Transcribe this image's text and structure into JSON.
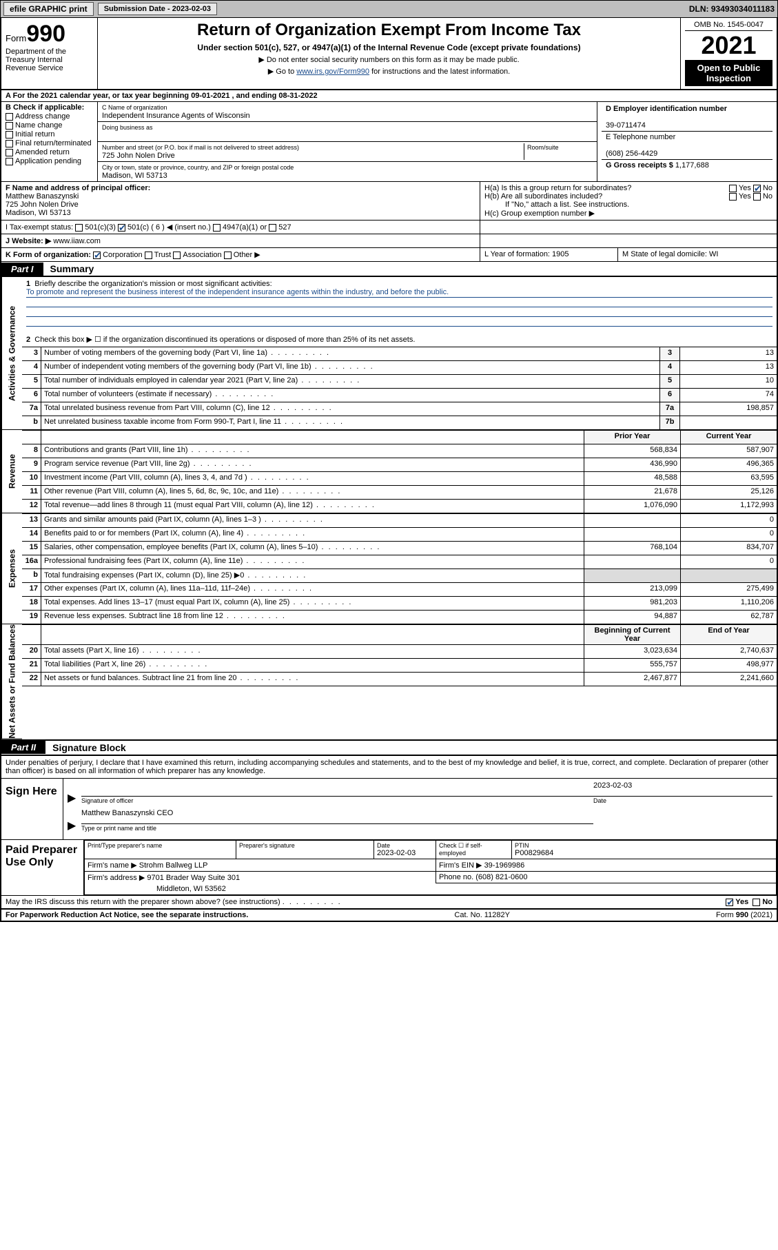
{
  "topbar": {
    "efile": "efile GRAPHIC print",
    "subdate_label": "Submission Date - 2023-02-03",
    "dln": "DLN: 93493034011183"
  },
  "header": {
    "form_prefix": "Form",
    "form_number": "990",
    "title": "Return of Organization Exempt From Income Tax",
    "subtitle": "Under section 501(c), 527, or 4947(a)(1) of the Internal Revenue Code (except private foundations)",
    "note1": "▶ Do not enter social security numbers on this form as it may be made public.",
    "note2_pre": "▶ Go to ",
    "note2_link": "www.irs.gov/Form990",
    "note2_post": " for instructions and the latest information.",
    "dept": "Department of the Treasury Internal Revenue Service",
    "omb": "OMB No. 1545-0047",
    "year": "2021",
    "open": "Open to Public Inspection"
  },
  "period": {
    "line": "A For the 2021 calendar year, or tax year beginning 09-01-2021    , and ending 08-31-2022"
  },
  "boxB": {
    "label": "B Check if applicable:",
    "items": [
      "Address change",
      "Name change",
      "Initial return",
      "Final return/terminated",
      "Amended return",
      "Application pending"
    ]
  },
  "boxC": {
    "lblname": "C Name of organization",
    "name": "Independent Insurance Agents of Wisconsin",
    "dba_lbl": "Doing business as",
    "addr_lbl": "Number and street (or P.O. box if mail is not delivered to street address)",
    "room_lbl": "Room/suite",
    "addr": "725 John Nolen Drive",
    "city_lbl": "City or town, state or province, country, and ZIP or foreign postal code",
    "city": "Madison, WI  53713"
  },
  "boxD": {
    "lbl": "D Employer identification number",
    "val": "39-0711474"
  },
  "boxE": {
    "lbl": "E Telephone number",
    "val": "(608) 256-4429"
  },
  "boxG": {
    "lbl": "G Gross receipts $",
    "val": "1,177,688"
  },
  "boxF": {
    "lbl": "F Name and address of principal officer:",
    "name": "Matthew Banaszynski",
    "addr1": "725 John Nolen Drive",
    "addr2": "Madison, WI  53713"
  },
  "boxH": {
    "a": "H(a)  Is this a group return for subordinates?",
    "b": "H(b)  Are all subordinates included?",
    "bnote": "If \"No,\" attach a list. See instructions.",
    "c": "H(c)  Group exemption number ▶",
    "yes": "Yes",
    "no": "No"
  },
  "rowI": {
    "lbl": "I   Tax-exempt status:",
    "o1": "501(c)(3)",
    "o2": "501(c) ( 6 ) ◀ (insert no.)",
    "o3": "4947(a)(1) or",
    "o4": "527"
  },
  "rowJ": {
    "lbl": "J   Website: ▶",
    "val": "www.iiaw.com"
  },
  "rowK": {
    "lbl": "K Form of organization:",
    "opts": [
      "Corporation",
      "Trust",
      "Association",
      "Other ▶"
    ],
    "L": "L Year of formation: 1905",
    "M": "M State of legal domicile: WI"
  },
  "part1": {
    "tag": "Part I",
    "title": "Summary"
  },
  "sections": {
    "gov": "Activities & Governance",
    "rev": "Revenue",
    "exp": "Expenses",
    "net": "Net Assets or Fund Balances"
  },
  "gov": {
    "l1a": "Briefly describe the organization's mission or most significant activities:",
    "l1b": "To promote and represent the business interest of the independent insurance agents within the industry, and before the public.",
    "l2": "Check this box ▶ ☐  if the organization discontinued its operations or disposed of more than 25% of its net assets.",
    "rows": [
      {
        "n": "3",
        "d": "Number of voting members of the governing body (Part VI, line 1a)",
        "k": "3",
        "v": "13"
      },
      {
        "n": "4",
        "d": "Number of independent voting members of the governing body (Part VI, line 1b)",
        "k": "4",
        "v": "13"
      },
      {
        "n": "5",
        "d": "Total number of individuals employed in calendar year 2021 (Part V, line 2a)",
        "k": "5",
        "v": "10"
      },
      {
        "n": "6",
        "d": "Total number of volunteers (estimate if necessary)",
        "k": "6",
        "v": "74"
      },
      {
        "n": "7a",
        "d": "Total unrelated business revenue from Part VIII, column (C), line 12",
        "k": "7a",
        "v": "198,857"
      },
      {
        "n": "b",
        "d": "Net unrelated business taxable income from Form 990-T, Part I, line 11",
        "k": "7b",
        "v": ""
      }
    ]
  },
  "cols": {
    "prior": "Prior Year",
    "current": "Current Year",
    "boy": "Beginning of Current Year",
    "eoy": "End of Year"
  },
  "rev": [
    {
      "n": "8",
      "d": "Contributions and grants (Part VIII, line 1h)",
      "p": "568,834",
      "c": "587,907"
    },
    {
      "n": "9",
      "d": "Program service revenue (Part VIII, line 2g)",
      "p": "436,990",
      "c": "496,365"
    },
    {
      "n": "10",
      "d": "Investment income (Part VIII, column (A), lines 3, 4, and 7d )",
      "p": "48,588",
      "c": "63,595"
    },
    {
      "n": "11",
      "d": "Other revenue (Part VIII, column (A), lines 5, 6d, 8c, 9c, 10c, and 11e)",
      "p": "21,678",
      "c": "25,126"
    },
    {
      "n": "12",
      "d": "Total revenue—add lines 8 through 11 (must equal Part VIII, column (A), line 12)",
      "p": "1,076,090",
      "c": "1,172,993"
    }
  ],
  "exp": [
    {
      "n": "13",
      "d": "Grants and similar amounts paid (Part IX, column (A), lines 1–3 )",
      "p": "",
      "c": "0"
    },
    {
      "n": "14",
      "d": "Benefits paid to or for members (Part IX, column (A), line 4)",
      "p": "",
      "c": "0"
    },
    {
      "n": "15",
      "d": "Salaries, other compensation, employee benefits (Part IX, column (A), lines 5–10)",
      "p": "768,104",
      "c": "834,707"
    },
    {
      "n": "16a",
      "d": "Professional fundraising fees (Part IX, column (A), line 11e)",
      "p": "",
      "c": "0"
    },
    {
      "n": "b",
      "d": "Total fundraising expenses (Part IX, column (D), line 25) ▶0",
      "p": "SHADE",
      "c": "SHADE"
    },
    {
      "n": "17",
      "d": "Other expenses (Part IX, column (A), lines 11a–11d, 11f–24e)",
      "p": "213,099",
      "c": "275,499"
    },
    {
      "n": "18",
      "d": "Total expenses. Add lines 13–17 (must equal Part IX, column (A), line 25)",
      "p": "981,203",
      "c": "1,110,206"
    },
    {
      "n": "19",
      "d": "Revenue less expenses. Subtract line 18 from line 12",
      "p": "94,887",
      "c": "62,787"
    }
  ],
  "net": [
    {
      "n": "20",
      "d": "Total assets (Part X, line 16)",
      "p": "3,023,634",
      "c": "2,740,637"
    },
    {
      "n": "21",
      "d": "Total liabilities (Part X, line 26)",
      "p": "555,757",
      "c": "498,977"
    },
    {
      "n": "22",
      "d": "Net assets or fund balances. Subtract line 21 from line 20",
      "p": "2,467,877",
      "c": "2,241,660"
    }
  ],
  "part2": {
    "tag": "Part II",
    "title": "Signature Block"
  },
  "sigdecl": "Under penalties of perjury, I declare that I have examined this return, including accompanying schedules and statements, and to the best of my knowledge and belief, it is true, correct, and complete. Declaration of preparer (other than officer) is based on all information of which preparer has any knowledge.",
  "sign": {
    "here": "Sign Here",
    "sig_cap": "Signature of officer",
    "date_cap": "Date",
    "date_val": "2023-02-03",
    "name": "Matthew Banaszynski CEO",
    "name_cap": "Type or print name and title"
  },
  "prep": {
    "label": "Paid Preparer Use Only",
    "h1": "Print/Type preparer's name",
    "h2": "Preparer's signature",
    "h3": "Date",
    "h3v": "2023-02-03",
    "h4": "Check ☐ if self-employed",
    "h5": "PTIN",
    "h5v": "P00829684",
    "firm_lbl": "Firm's name    ▶",
    "firm": "Strohm Ballweg LLP",
    "ein_lbl": "Firm's EIN ▶",
    "ein": "39-1969986",
    "addr_lbl": "Firm's address ▶",
    "addr1": "9701 Brader Way Suite 301",
    "addr2": "Middleton, WI  53562",
    "phone_lbl": "Phone no.",
    "phone": "(608) 821-0600"
  },
  "discuss": {
    "q": "May the IRS discuss this return with the preparer shown above? (see instructions)",
    "yes": "Yes",
    "no": "No"
  },
  "footer": {
    "left": "For Paperwork Reduction Act Notice, see the separate instructions.",
    "mid": "Cat. No. 11282Y",
    "right": "Form 990 (2021)"
  }
}
